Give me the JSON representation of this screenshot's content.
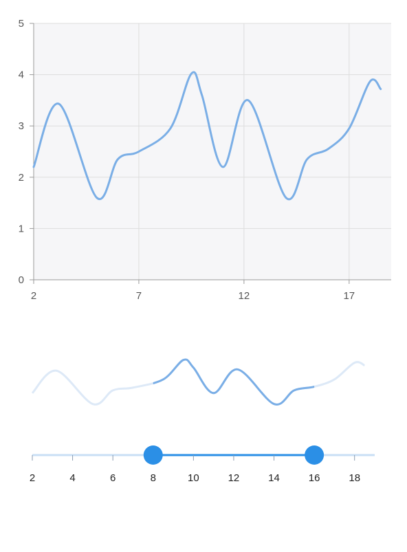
{
  "colors": {
    "line": "#7aaee6",
    "line_faded": "#dde9f7",
    "grid": "#dddddd",
    "axis": "#999999",
    "plot_bg": "#f6f6f8",
    "thumb": "#2b8fe6",
    "track_inactive": "#c9dff5"
  },
  "chart_data": [
    {
      "type": "line",
      "x": [
        2,
        3.2,
        5,
        6,
        7,
        8.5,
        9.5,
        10,
        11,
        12.2,
        14,
        15,
        16,
        17,
        18,
        18.5
      ],
      "y": [
        2.2,
        3.43,
        1.6,
        2.35,
        2.5,
        2.95,
        4.02,
        3.6,
        2.2,
        3.5,
        1.6,
        2.35,
        2.55,
        2.95,
        3.87,
        3.72
      ],
      "xlim": [
        2,
        19
      ],
      "ylim": [
        0,
        5
      ],
      "x_ticks": [
        "2",
        "7",
        "12",
        "17"
      ],
      "y_ticks": [
        "0",
        "1",
        "2",
        "3",
        "4",
        "5"
      ],
      "grid": true,
      "title": "",
      "xlabel": "",
      "ylabel": ""
    },
    {
      "type": "line",
      "role": "range-selector",
      "x": [
        2,
        3.2,
        5,
        6,
        7,
        8.5,
        9.5,
        10,
        11,
        12.2,
        14,
        15,
        16,
        17,
        18,
        18.5
      ],
      "y": [
        2.2,
        3.43,
        1.6,
        2.35,
        2.5,
        2.95,
        4.02,
        3.6,
        2.2,
        3.5,
        1.6,
        2.35,
        2.55,
        2.95,
        3.87,
        3.72
      ],
      "xlim": [
        2,
        19
      ],
      "x_ticks": [
        "2",
        "4",
        "6",
        "8",
        "10",
        "12",
        "14",
        "16",
        "18"
      ],
      "selected_range": [
        8,
        16
      ]
    }
  ]
}
